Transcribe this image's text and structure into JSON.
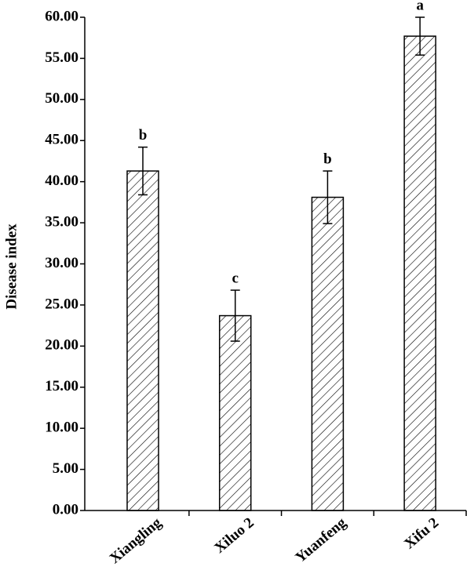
{
  "chart_data": {
    "type": "bar",
    "y_label": "Disease index",
    "categories": [
      "Xiangling",
      "Xiluo  2",
      "Yuanfeng",
      "Xifu 2"
    ],
    "values": [
      41.3,
      23.7,
      38.1,
      57.7
    ],
    "errors": [
      2.9,
      3.1,
      3.2,
      2.3
    ],
    "letters": [
      "b",
      "c",
      "b",
      "a"
    ],
    "color": "#000000",
    "ylim": [
      0,
      60
    ],
    "yticks": [
      {
        "value": 0,
        "label": "0.00"
      },
      {
        "value": 5,
        "label": "5.00"
      },
      {
        "value": 10,
        "label": "10.00"
      },
      {
        "value": 15,
        "label": "15.00"
      },
      {
        "value": 20,
        "label": "20.00"
      },
      {
        "value": 25,
        "label": "25.00"
      },
      {
        "value": 30,
        "label": "30.00"
      },
      {
        "value": 35,
        "label": "35.00"
      },
      {
        "value": 40,
        "label": "40.00"
      },
      {
        "value": 45,
        "label": "45.00"
      },
      {
        "value": 50,
        "label": "50.00"
      },
      {
        "value": 55,
        "label": "55.00"
      },
      {
        "value": 60,
        "label": "60.00"
      }
    ]
  }
}
